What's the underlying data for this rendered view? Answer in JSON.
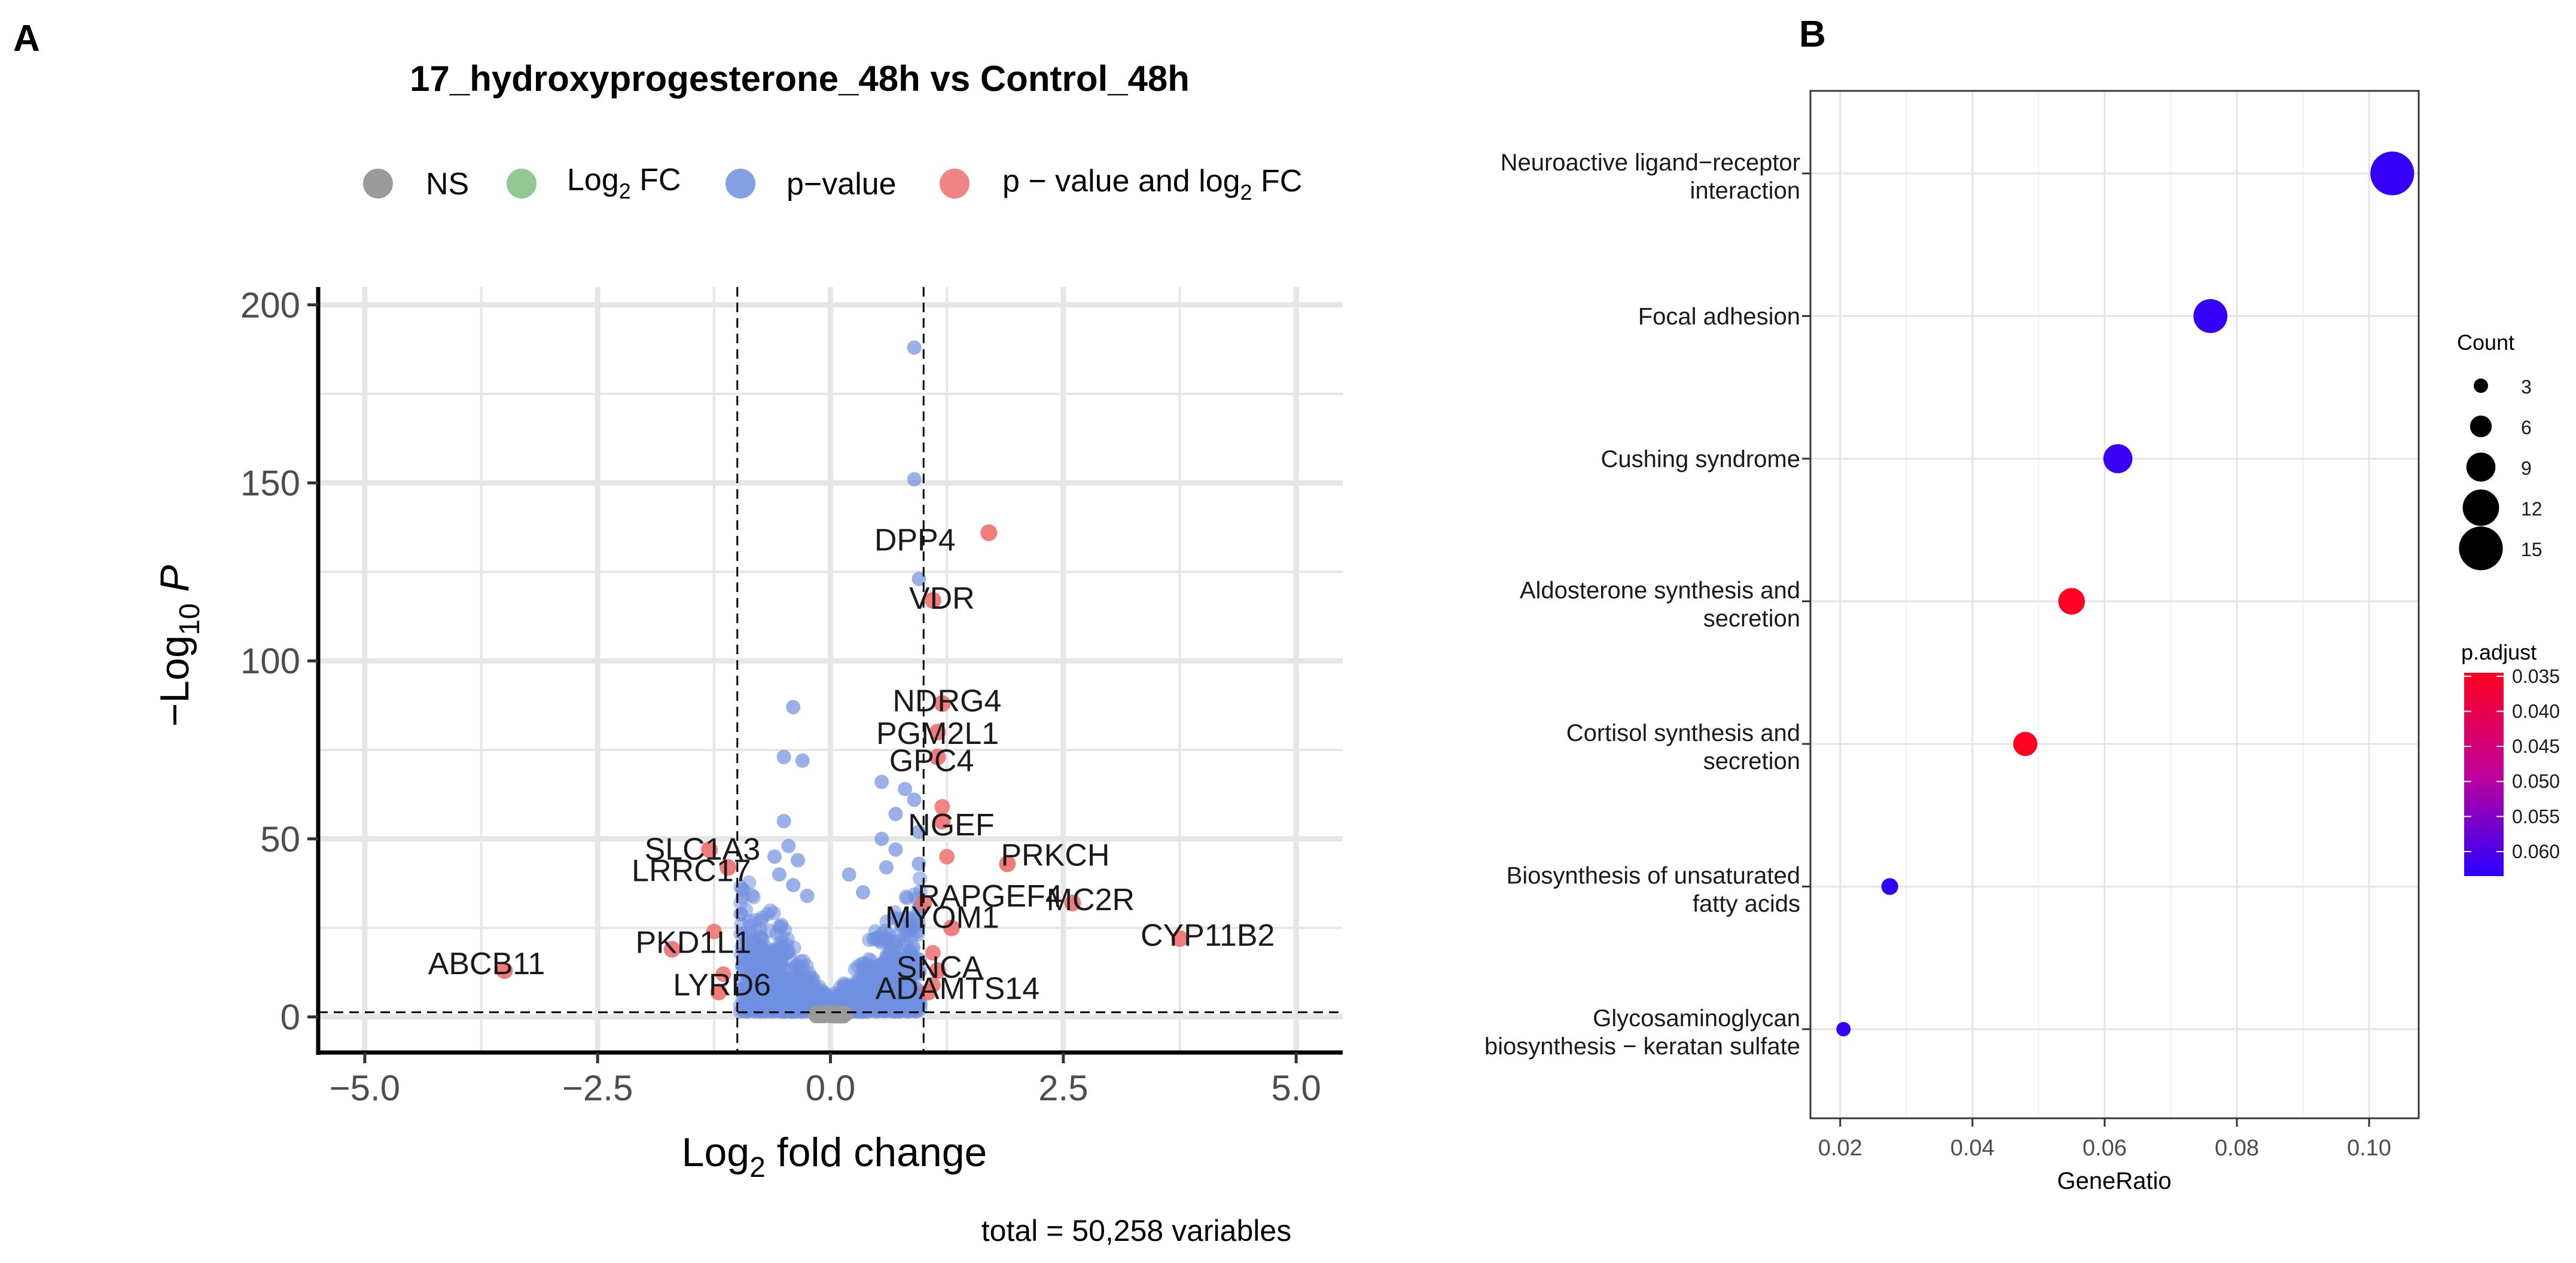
{
  "panels": {
    "a_label": "A",
    "b_label": "B"
  },
  "colors": {
    "ns": "#9a9a9a",
    "log2fc": "#7fbf7f",
    "pvalue": "#6f8fe0",
    "both": "#ee6e6e",
    "grid": "#e6e6e6",
    "axis": "#000000",
    "enrich_high": "#ff0020",
    "enrich_low": "#2a00ff"
  },
  "chart_data": [
    {
      "type": "scatter",
      "title": "17_hydroxyprogesterone_48h vs Control_48h",
      "xlabel_main": "Log",
      "xlabel_sub": "2",
      "xlabel_tail": " fold change",
      "ylabel_main": "−Log",
      "ylabel_sub": "10",
      "ylabel_tail": " P",
      "caption": "total = 50,258 variables",
      "xlim": [
        -5.5,
        5.5
      ],
      "ylim": [
        -10,
        205
      ],
      "x_ticks": [
        -5.0,
        -2.5,
        0.0,
        2.5,
        5.0
      ],
      "x_tick_labels": [
        "−5.0",
        "−2.5",
        "0.0",
        "2.5",
        "5.0"
      ],
      "y_ticks": [
        0,
        50,
        100,
        150,
        200
      ],
      "y_tick_labels": [
        "0",
        "50",
        "100",
        "150",
        "200"
      ],
      "fc_cutoff": [
        -1,
        1
      ],
      "p_cutoff": 1.3,
      "legend": [
        {
          "label": "NS",
          "color_key": "ns"
        },
        {
          "label_main": "Log",
          "label_sub": "2",
          "label_tail": " FC",
          "color_key": "log2fc"
        },
        {
          "label": "p−value",
          "color_key": "pvalue"
        },
        {
          "label_main": "p − value and log",
          "label_sub": "2",
          "label_tail": " FC",
          "color_key": "both"
        }
      ],
      "significant_points": [
        {
          "gene": "DPP4",
          "x": 1.7,
          "y": 136
        },
        {
          "gene": "VDR",
          "x": 1.1,
          "y": 117
        },
        {
          "gene": "NDRG4",
          "x": 1.2,
          "y": 88
        },
        {
          "gene": "PGM2L1",
          "x": 1.15,
          "y": 80
        },
        {
          "gene": "GPC4",
          "x": 1.15,
          "y": 73
        },
        {
          "gene": "NGEF",
          "x": 1.2,
          "y": 55
        },
        {
          "gene": "SLC1A3",
          "x": -1.3,
          "y": 47
        },
        {
          "gene": "PRKCH",
          "x": 1.9,
          "y": 43
        },
        {
          "gene": "LRRC17",
          "x": -1.1,
          "y": 42
        },
        {
          "gene": "RAPGEF4",
          "x": 1.0,
          "y": 32
        },
        {
          "gene": "MC2R",
          "x": 2.6,
          "y": 32
        },
        {
          "gene": "MYOM1",
          "x": 1.3,
          "y": 25
        },
        {
          "gene": "CYP11B2",
          "x": 3.75,
          "y": 22
        },
        {
          "gene": "PKD1L1",
          "x": -1.7,
          "y": 19
        },
        {
          "gene": "SNCA",
          "x": 1.15,
          "y": 13
        },
        {
          "gene": "ABCB11",
          "x": -3.5,
          "y": 13
        },
        {
          "gene": "LYRD6",
          "x": -1.2,
          "y": 7
        },
        {
          "gene": "ADAMTS14",
          "x": 1.05,
          "y": 7
        }
      ],
      "extra_significant_points": [
        {
          "x": 1.2,
          "y": 59
        },
        {
          "x": 1.25,
          "y": 45
        },
        {
          "x": 1.1,
          "y": 18
        },
        {
          "x": -1.25,
          "y": 24
        },
        {
          "x": -1.15,
          "y": 12
        },
        {
          "x": 1.1,
          "y": 9
        }
      ],
      "pvalue_points": [
        {
          "x": 0.9,
          "y": 188
        },
        {
          "x": 0.9,
          "y": 151
        },
        {
          "x": 0.95,
          "y": 123
        },
        {
          "x": -0.4,
          "y": 87
        },
        {
          "x": -0.5,
          "y": 73
        },
        {
          "x": -0.3,
          "y": 72
        },
        {
          "x": 0.55,
          "y": 66
        },
        {
          "x": 0.8,
          "y": 64
        },
        {
          "x": 0.9,
          "y": 61
        },
        {
          "x": 0.7,
          "y": 57
        },
        {
          "x": 0.95,
          "y": 52
        },
        {
          "x": 0.55,
          "y": 50
        },
        {
          "x": 0.7,
          "y": 47
        },
        {
          "x": -0.5,
          "y": 55
        },
        {
          "x": -0.45,
          "y": 48
        },
        {
          "x": -0.6,
          "y": 45
        },
        {
          "x": -0.35,
          "y": 44
        },
        {
          "x": -0.55,
          "y": 40
        },
        {
          "x": -0.4,
          "y": 37
        },
        {
          "x": 0.6,
          "y": 42
        },
        {
          "x": 0.95,
          "y": 43
        },
        {
          "x": 0.2,
          "y": 40
        },
        {
          "x": -0.25,
          "y": 34
        },
        {
          "x": 0.35,
          "y": 35
        }
      ]
    },
    {
      "type": "scatter",
      "subtype": "dot-enrichment",
      "xlabel": "GeneRatio",
      "xlim": [
        0.0155,
        0.1075
      ],
      "x_ticks": [
        0.02,
        0.04,
        0.06,
        0.08,
        0.1
      ],
      "x_tick_labels": [
        "0.02",
        "0.04",
        "0.06",
        "0.08",
        "0.10"
      ],
      "categories": [
        {
          "line1": "Neuroactive ligand−receptor",
          "line2": "interaction"
        },
        {
          "line1": "Focal adhesion",
          "line2": ""
        },
        {
          "line1": "Cushing syndrome",
          "line2": ""
        },
        {
          "line1": "Aldosterone synthesis and",
          "line2": "secretion"
        },
        {
          "line1": "Cortisol synthesis and",
          "line2": "secretion"
        },
        {
          "line1": "Biosynthesis of unsaturated",
          "line2": "fatty acids"
        },
        {
          "line1": "Glycosaminoglycan",
          "line2": "biosynthesis − keratan sulfate"
        }
      ],
      "gene_ratio": [
        0.1035,
        0.076,
        0.062,
        0.055,
        0.048,
        0.0275,
        0.0205
      ],
      "count": [
        15,
        11,
        9,
        8,
        7,
        4,
        3
      ],
      "p_adjust": [
        0.0625,
        0.0625,
        0.062,
        0.035,
        0.0345,
        0.063,
        0.0625
      ],
      "size_legend": {
        "title": "Count",
        "values": [
          3,
          6,
          9,
          12,
          15
        ],
        "labels": [
          "3",
          "6",
          "9",
          "12",
          "15"
        ]
      },
      "color_legend": {
        "title": "p.adjust",
        "range": [
          0.0345,
          0.0635
        ],
        "labels": [
          "0.035",
          "0.040",
          "0.045",
          "0.050",
          "0.055",
          "0.060"
        ],
        "values": [
          0.035,
          0.04,
          0.045,
          0.05,
          0.055,
          0.06
        ]
      }
    }
  ]
}
